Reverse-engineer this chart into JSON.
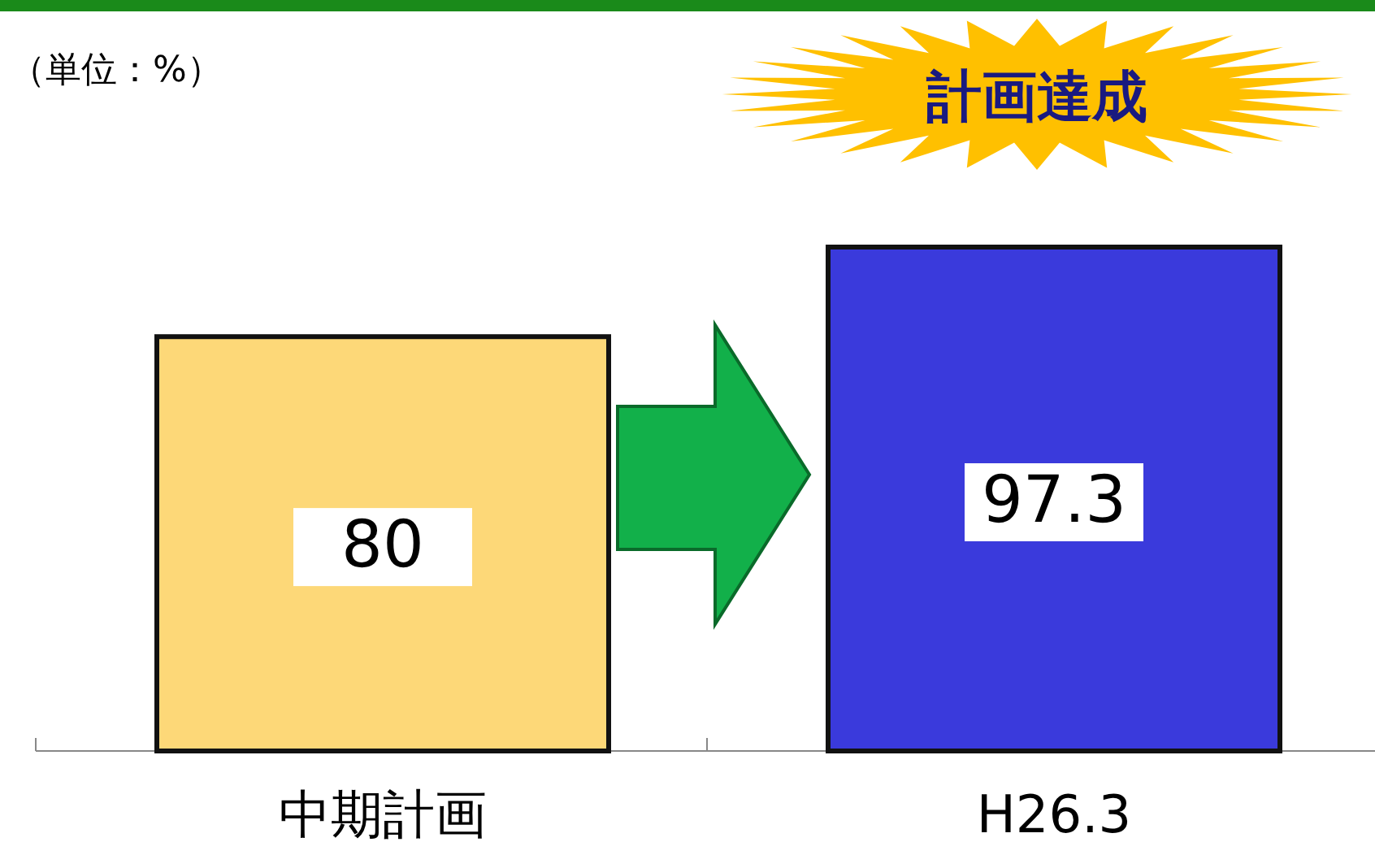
{
  "chart_data": {
    "type": "bar",
    "categories": [
      "中期計画",
      "H26.3"
    ],
    "values": [
      80,
      97.3
    ],
    "colors": [
      "#fdd878",
      "#3a3adc"
    ],
    "data_labels": true,
    "annotations": [
      "（単位：%）",
      "計画達成"
    ]
  }
}
